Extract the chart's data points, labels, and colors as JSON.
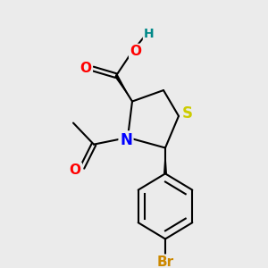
{
  "bg_color": "#ebebeb",
  "atom_colors": {
    "O": "#ff0000",
    "N": "#0000ff",
    "S": "#cccc00",
    "Br": "#cc8800",
    "C": "#000000",
    "H": "#008888"
  },
  "lw": 1.5
}
